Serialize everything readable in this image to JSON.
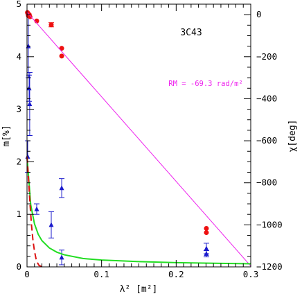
{
  "chart_data": {
    "type": "scatter",
    "title": "3C43",
    "annotation": "RM = -69.3 rad/m²",
    "xlabel": "λ² [m²]",
    "ylabel_left": "m[%]",
    "ylabel_right": "χ[deg]",
    "xlim": [
      0,
      0.3
    ],
    "ylim_left": [
      0,
      5
    ],
    "ylim_right": [
      -1200,
      50
    ],
    "x_ticks": [
      "0",
      "0.1",
      "0.2",
      "0.3"
    ],
    "y_left_ticks": [
      "0",
      "1",
      "2",
      "3",
      "4",
      "5"
    ],
    "y_right_ticks": [
      "0",
      "−200",
      "−400",
      "−600",
      "−800",
      "−1000",
      "−1200"
    ],
    "grid": false,
    "series": [
      {
        "axis": "left",
        "marker": "triangle",
        "color": "#1a1acc",
        "points": [
          {
            "x": 0.0009,
            "y": 2.1,
            "err": 0.3
          },
          {
            "x": 0.0018,
            "y": 4.2,
            "err": 0.6
          },
          {
            "x": 0.0028,
            "y": 3.4,
            "err": 0.25
          },
          {
            "x": 0.0036,
            "y": 3.1,
            "err": 0.6
          },
          {
            "x": 0.013,
            "y": 1.1,
            "err": 0.1
          },
          {
            "x": 0.0325,
            "y": 0.8,
            "err": 0.25
          },
          {
            "x": 0.0465,
            "y": 1.5,
            "err": 0.18
          },
          {
            "x": 0.0465,
            "y": 0.18,
            "err": 0.14
          },
          {
            "x": 0.2405,
            "y": 0.35,
            "err": 0.1
          },
          {
            "x": 0.2405,
            "y": 0.25,
            "err": 0.06
          }
        ]
      },
      {
        "axis": "right",
        "marker": "circle",
        "color": "#ee1111",
        "points": [
          {
            "x": 0.0006,
            "y": 10
          },
          {
            "x": 0.0012,
            "y": 5
          },
          {
            "x": 0.0018,
            "y": -5
          },
          {
            "x": 0.003,
            "y": 0
          },
          {
            "x": 0.004,
            "y": -10
          },
          {
            "x": 0.013,
            "y": -30
          },
          {
            "x": 0.0325,
            "y": -48,
            "err": 10
          },
          {
            "x": 0.0465,
            "y": -160
          },
          {
            "x": 0.0465,
            "y": -197
          },
          {
            "x": 0.2405,
            "y": -1017
          },
          {
            "x": 0.2405,
            "y": -1037
          }
        ]
      },
      {
        "axis": "right",
        "type": "line",
        "color": "#ee22ee",
        "x": [
          0,
          0.3
        ],
        "y": [
          12,
          -1196
        ]
      },
      {
        "axis": "left",
        "type": "line",
        "color": "#22dd22",
        "x": [
          0,
          0.005,
          0.01,
          0.015,
          0.02,
          0.03,
          0.04,
          0.05,
          0.075,
          0.1,
          0.15,
          0.2,
          0.25,
          0.3
        ],
        "y": [
          2.1,
          1.18,
          0.82,
          0.62,
          0.5,
          0.36,
          0.28,
          0.23,
          0.16,
          0.13,
          0.1,
          0.08,
          0.07,
          0.06
        ]
      },
      {
        "axis": "left",
        "type": "line",
        "dash": "dashed",
        "color": "#dd1111",
        "x": [
          0,
          0.002,
          0.004,
          0.006,
          0.008,
          0.01,
          0.012,
          0.014,
          0.016,
          0.02
        ],
        "y": [
          2.1,
          1.68,
          1.2,
          0.8,
          0.5,
          0.3,
          0.16,
          0.08,
          0.03,
          0
        ]
      }
    ]
  }
}
